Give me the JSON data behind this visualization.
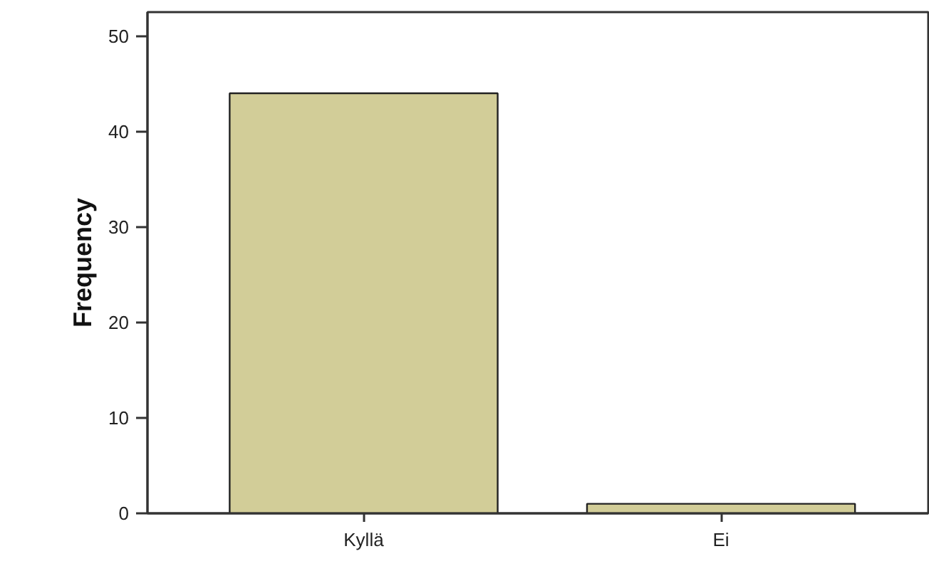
{
  "chart_data": {
    "type": "bar",
    "ylabel": "Frequency",
    "categories": [
      "Kyllä",
      "Ei"
    ],
    "values": [
      44,
      1
    ],
    "color": "#d2cd98",
    "ylim": [
      0,
      52.5
    ],
    "yticks": [
      0,
      10,
      20,
      30,
      40,
      50
    ],
    "grid": false
  }
}
